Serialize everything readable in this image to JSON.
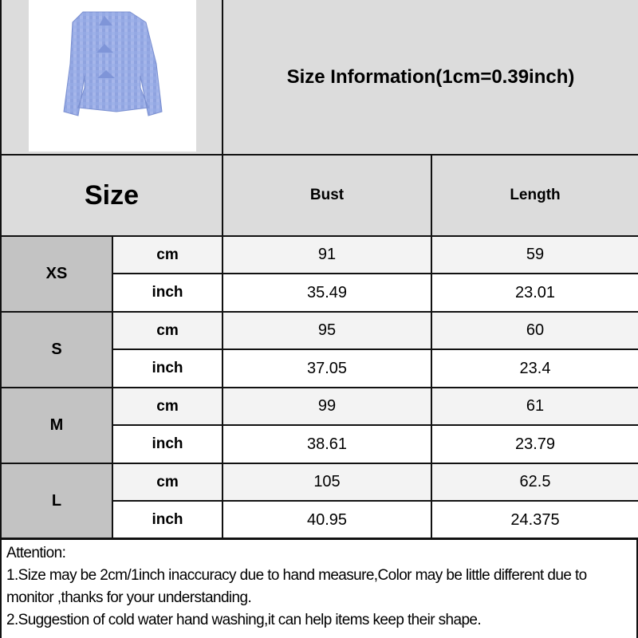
{
  "title": "Size Information(1cm=0.39inch)",
  "header": {
    "size": "Size",
    "bust": "Bust",
    "length": "Length"
  },
  "product_image": "blue gingham tie-front peplum blouse",
  "colors": {
    "header_bg": "#dcdcdc",
    "size_label_bg": "#c3c3c3",
    "cm_row_bg": "#f3f3f3",
    "inch_row_bg": "#ffffff",
    "blouse": "#8fa3e0"
  },
  "rows": [
    {
      "size": "XS",
      "cm": {
        "unit": "cm",
        "bust": "91",
        "length": "59"
      },
      "inch": {
        "unit": "inch",
        "bust": "35.49",
        "length": "23.01"
      }
    },
    {
      "size": "S",
      "cm": {
        "unit": "cm",
        "bust": "95",
        "length": "60"
      },
      "inch": {
        "unit": "inch",
        "bust": "37.05",
        "length": "23.4"
      }
    },
    {
      "size": "M",
      "cm": {
        "unit": "cm",
        "bust": "99",
        "length": "61"
      },
      "inch": {
        "unit": "inch",
        "bust": "38.61",
        "length": "23.79"
      }
    },
    {
      "size": "L",
      "cm": {
        "unit": "cm",
        "bust": "105",
        "length": "62.5"
      },
      "inch": {
        "unit": "inch",
        "bust": "40.95",
        "length": "24.375"
      }
    }
  ],
  "attention": {
    "heading": "Attention:",
    "line1": "1.Size may be 2cm/1inch inaccuracy due to hand measure,Color may be little different due to monitor ,thanks for your understanding.",
    "line2": "2.Suggestion of cold water hand washing,it can help items keep their shape."
  }
}
